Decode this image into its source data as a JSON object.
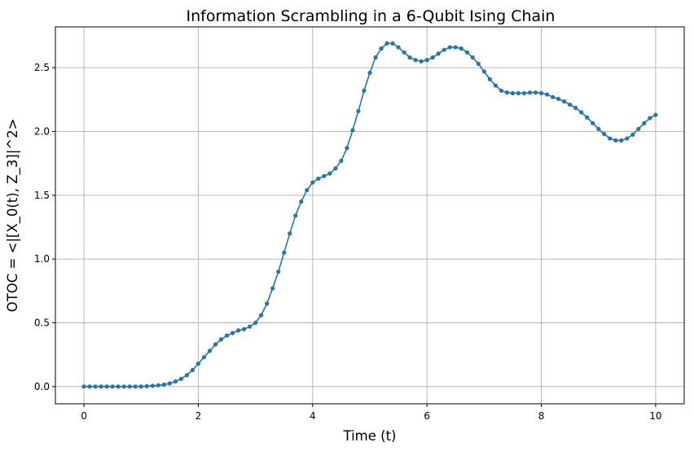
{
  "chart_data": {
    "type": "line",
    "title": "Information Scrambling in a 6-Qubit Ising Chain",
    "xlabel": "Time (t)",
    "ylabel": "OTOC = <|[X_0(t), Z_3]|^2>",
    "xlim": [
      -0.5,
      10.5
    ],
    "ylim": [
      -0.135,
      2.82
    ],
    "xticks": [
      0,
      2,
      4,
      6,
      8,
      10
    ],
    "xtick_labels": [
      "0",
      "2",
      "4",
      "6",
      "8",
      "10"
    ],
    "yticks": [
      0.0,
      0.5,
      1.0,
      1.5,
      2.0,
      2.5
    ],
    "ytick_labels": [
      "0.0",
      "0.5",
      "1.0",
      "1.5",
      "2.0",
      "2.5"
    ],
    "grid": true,
    "legend": "none",
    "series_color": "#1f77b4",
    "marker": "circle",
    "series": [
      {
        "x": [
          0.0,
          0.1,
          0.2,
          0.3,
          0.4,
          0.5,
          0.6,
          0.7,
          0.8,
          0.9,
          1.0,
          1.1,
          1.2,
          1.3,
          1.4,
          1.5,
          1.6,
          1.7,
          1.8,
          1.9,
          2.0,
          2.1,
          2.2,
          2.3,
          2.4,
          2.5,
          2.6,
          2.7,
          2.8,
          2.9,
          3.0,
          3.1,
          3.2,
          3.3,
          3.4,
          3.5,
          3.6,
          3.7,
          3.8,
          3.9,
          4.0,
          4.1,
          4.2,
          4.3,
          4.4,
          4.5,
          4.6,
          4.7,
          4.8,
          4.9,
          5.0,
          5.1,
          5.2,
          5.3,
          5.4,
          5.5,
          5.6,
          5.7,
          5.8,
          5.9,
          6.0,
          6.1,
          6.2,
          6.3,
          6.4,
          6.5,
          6.6,
          6.7,
          6.8,
          6.9,
          7.0,
          7.1,
          7.2,
          7.3,
          7.4,
          7.5,
          7.6,
          7.7,
          7.8,
          7.9,
          8.0,
          8.1,
          8.2,
          8.3,
          8.4,
          8.5,
          8.6,
          8.7,
          8.8,
          8.9,
          9.0,
          9.1,
          9.2,
          9.3,
          9.4,
          9.5,
          9.6,
          9.7,
          9.8,
          9.9,
          10.0
        ],
        "y": [
          0.0,
          0.0,
          0.0,
          0.0,
          0.0,
          0.0,
          0.0,
          0.0,
          0.0,
          0.0,
          0.0,
          0.003,
          0.006,
          0.01,
          0.015,
          0.025,
          0.04,
          0.06,
          0.09,
          0.13,
          0.18,
          0.23,
          0.28,
          0.33,
          0.37,
          0.4,
          0.42,
          0.44,
          0.45,
          0.47,
          0.5,
          0.56,
          0.65,
          0.77,
          0.9,
          1.05,
          1.2,
          1.34,
          1.45,
          1.54,
          1.6,
          1.63,
          1.65,
          1.67,
          1.71,
          1.77,
          1.87,
          2.01,
          2.16,
          2.32,
          2.46,
          2.58,
          2.65,
          2.69,
          2.69,
          2.66,
          2.62,
          2.58,
          2.56,
          2.55,
          2.56,
          2.58,
          2.61,
          2.64,
          2.66,
          2.66,
          2.65,
          2.62,
          2.58,
          2.53,
          2.47,
          2.41,
          2.36,
          2.32,
          2.305,
          2.3,
          2.3,
          2.3,
          2.305,
          2.305,
          2.3,
          2.29,
          2.27,
          2.255,
          2.235,
          2.21,
          2.185,
          2.15,
          2.11,
          2.065,
          2.02,
          1.98,
          1.945,
          1.93,
          1.93,
          1.945,
          1.975,
          2.02,
          2.065,
          2.105,
          2.13
        ]
      }
    ]
  }
}
